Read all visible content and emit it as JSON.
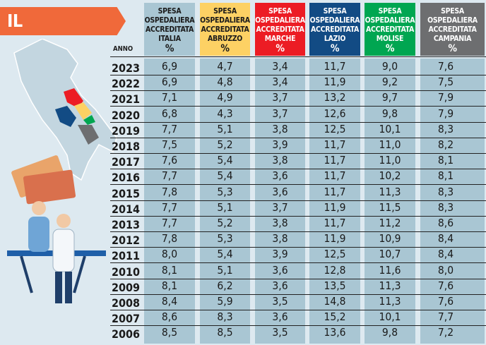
{
  "title": "IL CONFRONTO",
  "chart_data": {
    "type": "table",
    "title": "IL CONFRONTO",
    "row_header": "ANNO",
    "columns": [
      {
        "label": [
          "SPESA",
          "OSPEDALIERA",
          "ACCREDITATA",
          "ITALIA"
        ],
        "unit": "%",
        "color": "#a9c6d3",
        "text_color": "#1a1a1a"
      },
      {
        "label": [
          "SPESA",
          "OSPEDALIERA",
          "ACCREDITATA",
          "ABRUZZO"
        ],
        "unit": "%",
        "color": "#fdd164",
        "text_color": "#1a1a1a"
      },
      {
        "label": [
          "SPESA",
          "OSPEDALIERA",
          "ACCREDITATA",
          "MARCHE"
        ],
        "unit": "%",
        "color": "#ec1c24",
        "text_color": "#ffffff"
      },
      {
        "label": [
          "SPESA",
          "OSPEDALIERA",
          "ACCREDITATA",
          "LAZIO"
        ],
        "unit": "%",
        "color": "#124b84",
        "text_color": "#ffffff"
      },
      {
        "label": [
          "SPESA",
          "OSPEDALIERA",
          "ACCREDITATA",
          "MOLISE"
        ],
        "unit": "%",
        "color": "#00a651",
        "text_color": "#ffffff"
      },
      {
        "label": [
          "SPESA",
          "OSPEDALIERA",
          "ACCREDITATA",
          "CAMPANIA"
        ],
        "unit": "%",
        "color": "#6d6e70",
        "text_color": "#ffffff"
      }
    ],
    "rows": [
      {
        "year": "2023",
        "values": [
          "6,9",
          "4,7",
          "3,4",
          "11,7",
          "9,0",
          "7,6"
        ]
      },
      {
        "year": "2022",
        "values": [
          "6,9",
          "4,8",
          "3,4",
          "11,9",
          "9,2",
          "7,5"
        ]
      },
      {
        "year": "2021",
        "values": [
          "7,1",
          "4,9",
          "3,7",
          "13,2",
          "9,7",
          "7,9"
        ]
      },
      {
        "year": "2020",
        "values": [
          "6,8",
          "4,3",
          "3,7",
          "12,6",
          "9,8",
          "7,9"
        ]
      },
      {
        "year": "2019",
        "values": [
          "7,7",
          "5,1",
          "3,8",
          "12,5",
          "10,1",
          "8,3"
        ]
      },
      {
        "year": "2018",
        "values": [
          "7,5",
          "5,2",
          "3,9",
          "11,7",
          "11,0",
          "8,2"
        ]
      },
      {
        "year": "2017",
        "values": [
          "7,6",
          "5,4",
          "3,8",
          "11,7",
          "11,0",
          "8,1"
        ]
      },
      {
        "year": "2016",
        "values": [
          "7,7",
          "5,4",
          "3,6",
          "11,7",
          "10,2",
          "8,1"
        ]
      },
      {
        "year": "2015",
        "values": [
          "7,8",
          "5,3",
          "3,6",
          "11,7",
          "11,3",
          "8,3"
        ]
      },
      {
        "year": "2014",
        "values": [
          "7,7",
          "5,1",
          "3,7",
          "11,9",
          "11,5",
          "8,3"
        ]
      },
      {
        "year": "2013",
        "values": [
          "7,7",
          "5,2",
          "3,8",
          "11,7",
          "11,2",
          "8,6"
        ]
      },
      {
        "year": "2012",
        "values": [
          "7,8",
          "5,3",
          "3,8",
          "11,9",
          "10,9",
          "8,4"
        ]
      },
      {
        "year": "2011",
        "values": [
          "8,0",
          "5,4",
          "3,9",
          "12,5",
          "10,7",
          "8,4"
        ]
      },
      {
        "year": "2010",
        "values": [
          "8,1",
          "5,1",
          "3,6",
          "12,8",
          "11,6",
          "8,0"
        ]
      },
      {
        "year": "2009",
        "values": [
          "8,1",
          "6,2",
          "3,6",
          "13,5",
          "11,3",
          "7,6"
        ]
      },
      {
        "year": "2008",
        "values": [
          "8,4",
          "5,9",
          "3,5",
          "14,8",
          "11,3",
          "7,6"
        ]
      },
      {
        "year": "2007",
        "values": [
          "8,6",
          "8,3",
          "3,6",
          "15,2",
          "10,1",
          "7,7"
        ]
      },
      {
        "year": "2006",
        "values": [
          "8,5",
          "8,5",
          "3,5",
          "13,6",
          "9,8",
          "7,2"
        ]
      }
    ]
  }
}
